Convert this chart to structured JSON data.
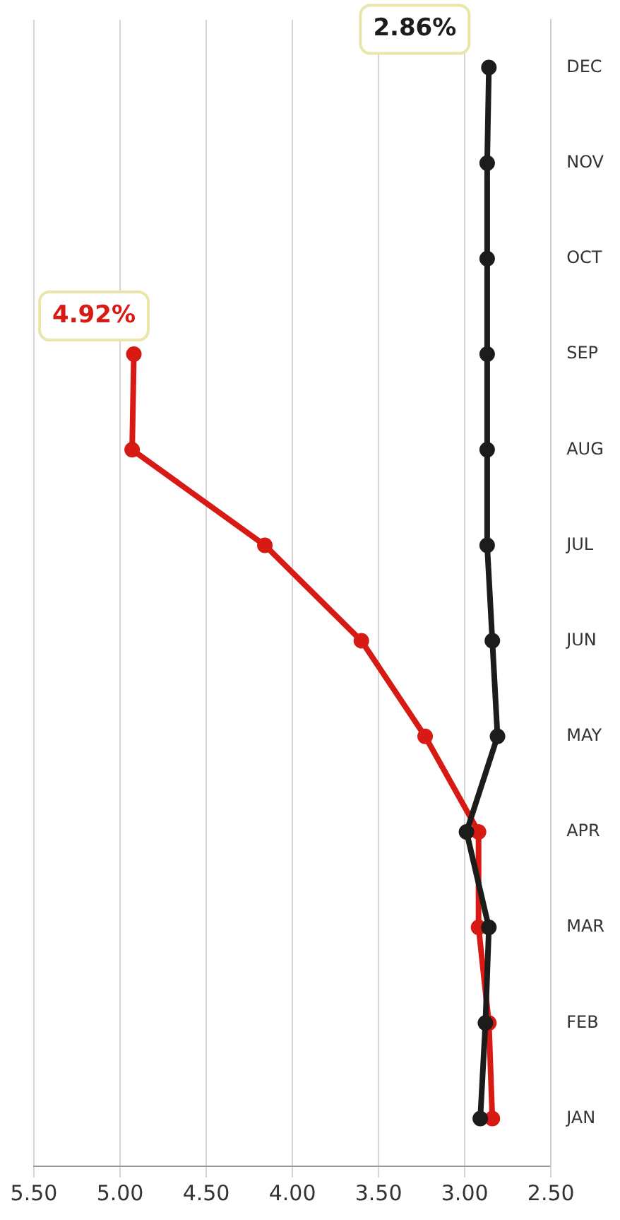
{
  "chart_data": {
    "type": "line",
    "orientation": "horizontal",
    "categories": [
      "DEC",
      "NOV",
      "OCT",
      "SEP",
      "AUG",
      "JUL",
      "JUN",
      "MAY",
      "APR",
      "MAR",
      "FEB",
      "JAN"
    ],
    "series": [
      {
        "color": "#d81a14",
        "values": [
          null,
          null,
          null,
          4.92,
          4.93,
          4.16,
          3.6,
          3.23,
          2.92,
          2.92,
          2.86,
          2.84
        ]
      },
      {
        "color": "#1c1c1a",
        "values": [
          2.86,
          2.87,
          2.87,
          2.87,
          2.87,
          2.87,
          2.84,
          2.81,
          2.99,
          2.86,
          2.88,
          2.91
        ]
      }
    ],
    "xlim": [
      5.5,
      2.5
    ],
    "xticks": [
      {
        "value": 5.5,
        "label": "5.50"
      },
      {
        "value": 5,
        "label": "5.00"
      },
      {
        "value": 4.5,
        "label": "4.50"
      },
      {
        "value": 4,
        "label": "4.00"
      },
      {
        "value": 3.5,
        "label": "3.50"
      },
      {
        "value": 3,
        "label": "3.00"
      },
      {
        "value": 2.5,
        "label": "2.50"
      }
    ],
    "annotations": [
      {
        "text": "4.92%",
        "x": 4.92,
        "y": "SEP"
      },
      {
        "text": "2.86%",
        "x": 2.86,
        "y": "DEC"
      }
    ],
    "grid": "x",
    "legend": false,
    "marker": "circle",
    "line_style": "solid"
  }
}
